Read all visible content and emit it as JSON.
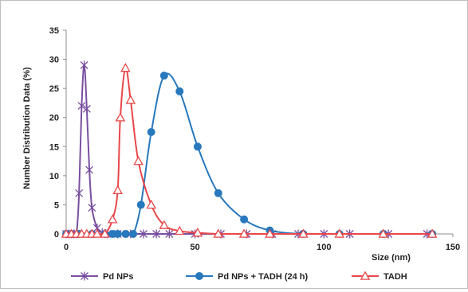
{
  "chart_data": {
    "type": "line",
    "title": "",
    "xlabel": "Size (nm)",
    "ylabel": "Number Distribution Data (%)",
    "xlim": [
      0,
      150
    ],
    "ylim": [
      0,
      35
    ],
    "xticks": [
      0,
      50,
      100,
      150
    ],
    "yticks": [
      0,
      5,
      10,
      15,
      20,
      25,
      30,
      35
    ],
    "grid": false,
    "legend_position": "bottom",
    "series": [
      {
        "name": "Pd NPs",
        "color": "#7a4fa0",
        "marker": "star",
        "x": [
          0,
          1,
          2,
          3,
          4,
          5,
          6,
          7,
          8,
          9,
          10,
          12,
          14,
          16,
          20,
          25,
          30,
          35,
          40,
          50,
          60,
          70,
          80,
          90,
          100,
          110,
          125,
          140
        ],
        "y": [
          0,
          0,
          0,
          0,
          0,
          7,
          22,
          29,
          21.5,
          11,
          4.5,
          1,
          0.2,
          0,
          0,
          0,
          0,
          0,
          0,
          0,
          0,
          0,
          0,
          0,
          0,
          0,
          0,
          0
        ]
      },
      {
        "name": "Pd NPs + TADH (24 h)",
        "color": "#2878bd",
        "marker": "circle",
        "x": [
          0,
          5,
          10,
          15,
          18,
          20,
          23,
          26,
          29,
          33,
          38,
          44,
          51,
          59,
          69,
          79,
          92,
          106,
          123,
          142
        ],
        "y": [
          0,
          0,
          0,
          0,
          0,
          0,
          0,
          0,
          5,
          17.5,
          27.2,
          24.5,
          15,
          7,
          2.5,
          0.6,
          0,
          0,
          0,
          0
        ]
      },
      {
        "name": "TADH",
        "color": "#e8474a",
        "marker": "triangle",
        "x": [
          0,
          2,
          4,
          6,
          8,
          10,
          12,
          15,
          18,
          20,
          21,
          23,
          25,
          28,
          33,
          38,
          44,
          51,
          59,
          69,
          79,
          92,
          106,
          123,
          142
        ],
        "y": [
          0,
          0,
          0,
          0,
          0,
          0,
          0,
          0,
          2.5,
          7.5,
          20,
          28.5,
          23,
          12.5,
          5,
          1.5,
          0.5,
          0.2,
          0,
          0,
          0,
          0,
          0,
          0,
          0
        ]
      }
    ]
  }
}
